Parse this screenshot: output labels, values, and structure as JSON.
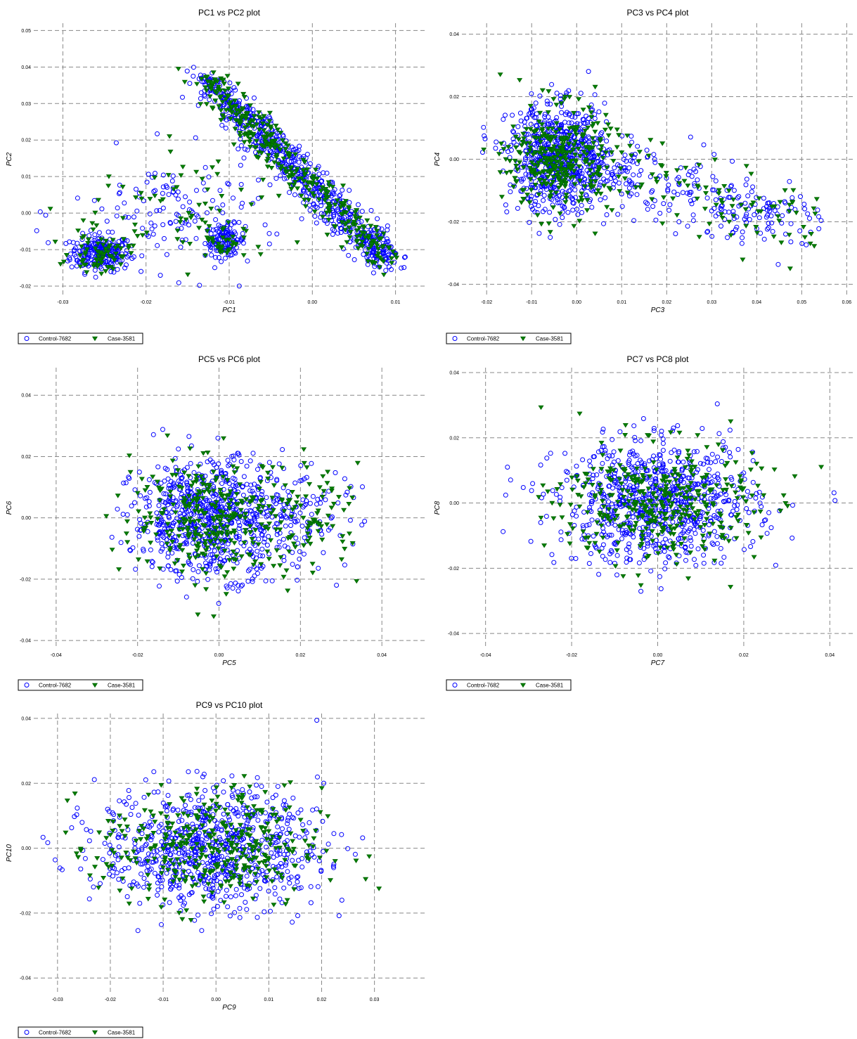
{
  "legend": {
    "series": [
      {
        "name": "Control-7682",
        "marker": "circle",
        "color": "#0000ff"
      },
      {
        "name": "Case-3581",
        "marker": "triangle-down",
        "color": "#008000",
        "edge": "#006400"
      }
    ]
  },
  "chart_data": [
    {
      "type": "scatter",
      "title": "PC1 vs PC2 plot",
      "xlabel": "PC1",
      "ylabel": "PC2",
      "xlim": [
        -0.0335,
        0.0135
      ],
      "ylim": [
        -0.0225,
        0.052
      ],
      "xticks": [
        -0.03,
        -0.02,
        -0.01,
        0.0,
        0.01
      ],
      "xtick_labels": [
        "-0.03",
        "-0.02",
        "-0.01",
        "0.00",
        "0.01"
      ],
      "yticks": [
        -0.02,
        -0.01,
        0.0,
        0.01,
        0.02,
        0.03,
        0.04,
        0.05
      ],
      "ytick_labels": [
        "-0.02",
        "-0.01",
        "0.00",
        "0.01",
        "0.02",
        "0.03",
        "0.04",
        "0.05"
      ],
      "grid": true,
      "legend": "below-left",
      "series_names": [
        "Control-7682",
        "Case-3581"
      ],
      "clusters": [
        {
          "cx": -0.0255,
          "cy": -0.011,
          "sx": 0.0018,
          "sy": 0.0025,
          "n_control": 230,
          "n_case": 70
        },
        {
          "cx": -0.0105,
          "cy": -0.0075,
          "sx": 0.0012,
          "sy": 0.0022,
          "n_control": 120,
          "n_case": 30
        },
        {
          "line": true,
          "x0": -0.013,
          "y0": 0.037,
          "x1": 0.009,
          "y1": -0.013,
          "spread": 0.0018,
          "n_control": 700,
          "n_case": 350
        },
        {
          "cx": -0.016,
          "cy": 0.0,
          "sx": 0.0065,
          "sy": 0.008,
          "n_control": 130,
          "n_case": 70
        }
      ]
    },
    {
      "type": "scatter",
      "title": "PC3 vs PC4 plot",
      "xlabel": "PC3",
      "ylabel": "PC4",
      "xlim": [
        -0.0255,
        0.0615
      ],
      "ylim": [
        -0.0435,
        0.0435
      ],
      "xticks": [
        -0.02,
        -0.01,
        0.0,
        0.01,
        0.02,
        0.03,
        0.04,
        0.05,
        0.06
      ],
      "xtick_labels": [
        "-0.02",
        "-0.01",
        "0.00",
        "0.01",
        "0.02",
        "0.03",
        "0.04",
        "0.05",
        "0.06"
      ],
      "yticks": [
        -0.04,
        -0.02,
        0.0,
        0.02,
        0.04
      ],
      "ytick_labels": [
        "-0.04",
        "-0.02",
        "0.00",
        "0.02",
        "0.04"
      ],
      "grid": true,
      "legend": "below-left",
      "series_names": [
        "Control-7682",
        "Case-3581"
      ],
      "clusters": [
        {
          "cx": -0.004,
          "cy": 0.0,
          "sx": 0.0055,
          "sy": 0.0085,
          "n_control": 650,
          "n_case": 330
        },
        {
          "line": true,
          "x0": 0.0,
          "y0": 0.0,
          "x1": 0.051,
          "y1": -0.021,
          "spread": 0.0055,
          "n_control": 260,
          "n_case": 110
        }
      ]
    },
    {
      "type": "scatter",
      "title": "PC5 vs PC6 plot",
      "xlabel": "PC5",
      "ylabel": "PC6",
      "xlim": [
        -0.0455,
        0.0505
      ],
      "ylim": [
        -0.0425,
        0.049
      ],
      "xticks": [
        -0.04,
        -0.02,
        0.0,
        0.02,
        0.04
      ],
      "xtick_labels": [
        "-0.04",
        "-0.02",
        "0.00",
        "0.02",
        "0.04"
      ],
      "yticks": [
        -0.04,
        -0.02,
        0.0,
        0.02,
        0.04
      ],
      "ytick_labels": [
        "-0.04",
        "-0.02",
        "0.00",
        "0.02",
        "0.04"
      ],
      "grid": true,
      "legend": "below-left",
      "series_names": [
        "Control-7682",
        "Case-3581"
      ],
      "clusters": [
        {
          "cx": -0.002,
          "cy": 0.0,
          "sx": 0.0095,
          "sy": 0.0095,
          "n_control": 750,
          "n_case": 300
        },
        {
          "cx": 0.022,
          "cy": 0.0,
          "sx": 0.0065,
          "sy": 0.0085,
          "n_control": 80,
          "n_case": 90
        }
      ]
    },
    {
      "type": "scatter",
      "title": "PC7 vs PC8 plot",
      "xlabel": "PC7",
      "ylabel": "PC8",
      "xlim": [
        -0.0455,
        0.0455
      ],
      "ylim": [
        -0.0445,
        0.0415
      ],
      "xticks": [
        -0.04,
        -0.02,
        0.0,
        0.02,
        0.04
      ],
      "xtick_labels": [
        "-0.04",
        "-0.02",
        "0.00",
        "0.02",
        "0.04"
      ],
      "yticks": [
        -0.04,
        -0.02,
        0.0,
        0.02,
        0.04
      ],
      "ytick_labels": [
        "-0.04",
        "-0.02",
        "0.00",
        "0.02",
        "0.04"
      ],
      "grid": true,
      "legend": "below-left",
      "series_names": [
        "Control-7682",
        "Case-3581"
      ],
      "clusters": [
        {
          "cx": 0.0,
          "cy": 0.0,
          "sx": 0.0115,
          "sy": 0.0092,
          "n_control": 800,
          "n_case": 380
        }
      ]
    },
    {
      "type": "scatter",
      "title": "PC9 vs PC10 plot",
      "xlabel": "PC9",
      "ylabel": "PC10",
      "xlim": [
        -0.0345,
        0.0395
      ],
      "ylim": [
        -0.0445,
        0.0415
      ],
      "xticks": [
        -0.03,
        -0.02,
        -0.01,
        0.0,
        0.01,
        0.02,
        0.03
      ],
      "xtick_labels": [
        "-0.03",
        "-0.02",
        "-0.01",
        "0.00",
        "0.01",
        "0.02",
        "0.03"
      ],
      "yticks": [
        -0.04,
        -0.02,
        0.0,
        0.02,
        0.04
      ],
      "ytick_labels": [
        "-0.04",
        "-0.02",
        "0.00",
        "0.02",
        "0.04"
      ],
      "grid": true,
      "legend": "below-left",
      "series_names": [
        "Control-7682",
        "Case-3581"
      ],
      "clusters": [
        {
          "cx": -0.001,
          "cy": 0.0,
          "sx": 0.0105,
          "sy": 0.0092,
          "n_control": 800,
          "n_case": 380
        }
      ]
    }
  ]
}
